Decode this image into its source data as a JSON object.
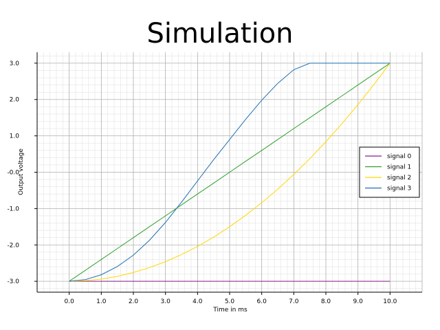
{
  "chart_data": {
    "type": "line",
    "title": "Simulation",
    "xlabel": "Time in ms",
    "ylabel": "Output voltage",
    "xlim": [
      -1,
      11
    ],
    "ylim": [
      -3.3,
      3.3
    ],
    "xticks": [
      "0.0",
      "1.0",
      "2.0",
      "3.0",
      "4.0",
      "5.0",
      "6.0",
      "7.0",
      "8.0",
      "9.0",
      "10.0"
    ],
    "xtick_values": [
      0,
      1,
      2,
      3,
      4,
      5,
      6,
      7,
      8,
      9,
      10
    ],
    "yticks": [
      "-3.0",
      "-2.0",
      "-1.0",
      "-0.0",
      "1.0",
      "2.0",
      "3.0"
    ],
    "ytick_values": [
      -3,
      -2,
      -1,
      0,
      1,
      2,
      3
    ],
    "grid": true,
    "minor_grid": true,
    "legend_position": "right",
    "x": [
      0,
      0.5,
      1,
      1.5,
      2,
      2.5,
      3,
      3.5,
      4,
      4.5,
      5,
      5.5,
      6,
      6.5,
      7,
      7.5,
      8,
      8.5,
      9,
      9.5,
      10
    ],
    "series": [
      {
        "name": "signal 0",
        "color": "#8b1a8b",
        "values": [
          -3,
          -3,
          -3,
          -3,
          -3,
          -3,
          -3,
          -3,
          -3,
          -3,
          -3,
          -3,
          -3,
          -3,
          -3,
          -3,
          -3,
          -3,
          -3,
          -3,
          -3
        ]
      },
      {
        "name": "signal 1",
        "color": "#2ca02c",
        "values": [
          -3,
          -2.7,
          -2.4,
          -2.1,
          -1.8,
          -1.5,
          -1.2,
          -0.9,
          -0.6,
          -0.3,
          0,
          0.3,
          0.6,
          0.9,
          1.2,
          1.5,
          1.8,
          2.1,
          2.4,
          2.7,
          3
        ]
      },
      {
        "name": "signal 2",
        "color": "#ffd700",
        "values": [
          -3,
          -2.985,
          -2.94,
          -2.865,
          -2.76,
          -2.625,
          -2.46,
          -2.265,
          -2.04,
          -1.785,
          -1.5,
          -1.185,
          -0.84,
          -0.465,
          -0.06,
          0.375,
          0.84,
          1.335,
          1.86,
          2.415,
          3
        ]
      },
      {
        "name": "signal 3",
        "color": "#1f6fb2",
        "values": [
          -3,
          -2.955,
          -2.82,
          -2.595,
          -2.28,
          -1.875,
          -1.38,
          -0.825,
          -0.24,
          0.345,
          0.9,
          1.455,
          1.98,
          2.445,
          2.82,
          3.0,
          3.0,
          3.0,
          3.0,
          3.0,
          3.0
        ]
      }
    ]
  }
}
